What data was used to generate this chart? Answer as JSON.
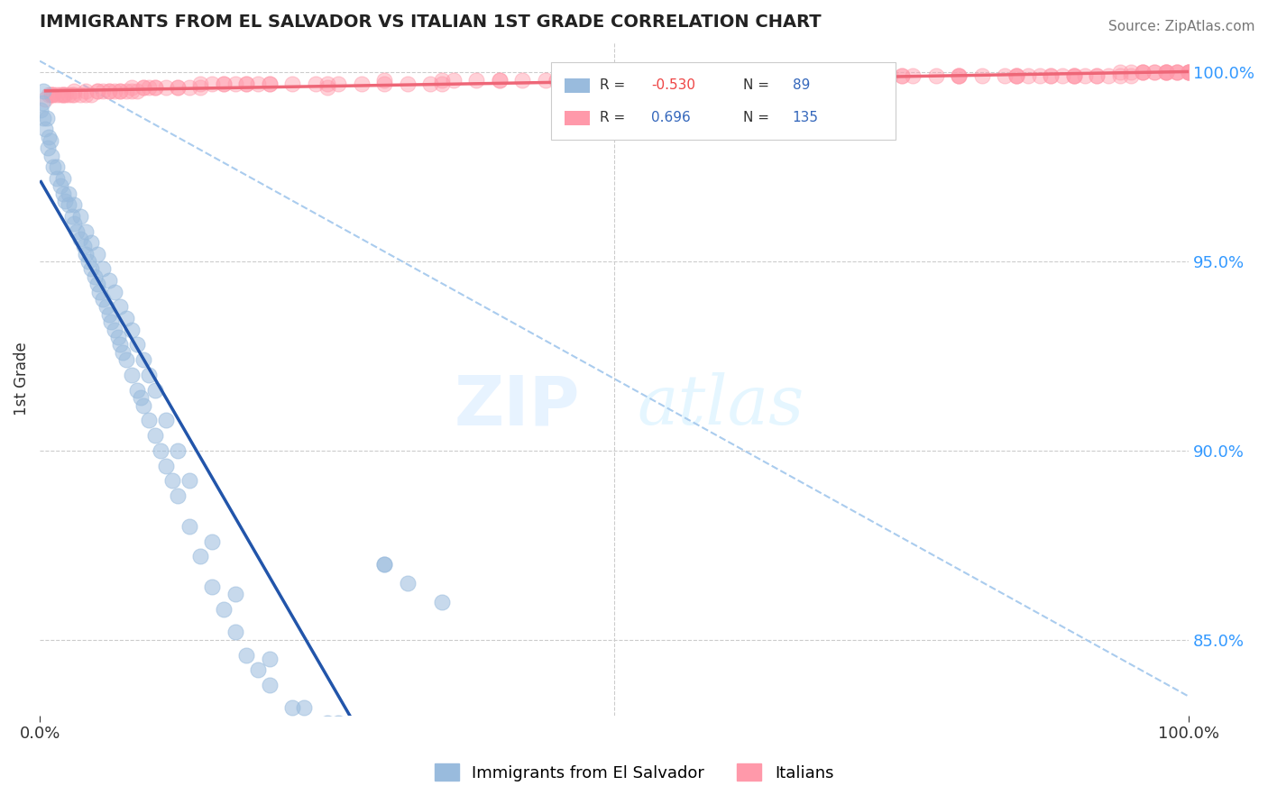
{
  "title": "IMMIGRANTS FROM EL SALVADOR VS ITALIAN 1ST GRADE CORRELATION CHART",
  "source_text": "Source: ZipAtlas.com",
  "ylabel": "1st Grade",
  "xmin": 0.0,
  "xmax": 1.0,
  "ymin": 0.83,
  "ymax": 1.008,
  "yticks": [
    0.85,
    0.9,
    0.95,
    1.0
  ],
  "ytick_labels": [
    "85.0%",
    "90.0%",
    "95.0%",
    "100.0%"
  ],
  "xticks": [
    0.0,
    1.0
  ],
  "xtick_labels": [
    "0.0%",
    "100.0%"
  ],
  "color_blue": "#99BBDD",
  "color_pink": "#FF99AA",
  "color_trend_blue": "#2255AA",
  "color_trend_pink": "#EE6677",
  "color_diag": "#AACCEE",
  "watermark_zip": "ZIP",
  "watermark_atlas": "atlas",
  "background_color": "#FFFFFF",
  "blue_x": [
    0.001,
    0.002,
    0.003,
    0.005,
    0.007,
    0.008,
    0.01,
    0.012,
    0.015,
    0.018,
    0.02,
    0.022,
    0.025,
    0.028,
    0.03,
    0.032,
    0.035,
    0.038,
    0.04,
    0.042,
    0.045,
    0.048,
    0.05,
    0.052,
    0.055,
    0.058,
    0.06,
    0.062,
    0.065,
    0.068,
    0.07,
    0.072,
    0.075,
    0.08,
    0.085,
    0.088,
    0.09,
    0.095,
    0.1,
    0.105,
    0.11,
    0.115,
    0.12,
    0.13,
    0.14,
    0.15,
    0.16,
    0.17,
    0.18,
    0.19,
    0.2,
    0.22,
    0.25,
    0.28,
    0.3,
    0.32,
    0.35,
    0.015,
    0.02,
    0.025,
    0.03,
    0.035,
    0.04,
    0.045,
    0.05,
    0.055,
    0.06,
    0.065,
    0.07,
    0.075,
    0.08,
    0.085,
    0.09,
    0.095,
    0.1,
    0.11,
    0.12,
    0.13,
    0.15,
    0.17,
    0.2,
    0.23,
    0.26,
    0.3,
    0.003,
    0.006,
    0.009
  ],
  "blue_y": [
    0.99,
    0.992,
    0.988,
    0.985,
    0.98,
    0.983,
    0.978,
    0.975,
    0.972,
    0.97,
    0.968,
    0.966,
    0.965,
    0.962,
    0.96,
    0.958,
    0.956,
    0.954,
    0.952,
    0.95,
    0.948,
    0.946,
    0.944,
    0.942,
    0.94,
    0.938,
    0.936,
    0.934,
    0.932,
    0.93,
    0.928,
    0.926,
    0.924,
    0.92,
    0.916,
    0.914,
    0.912,
    0.908,
    0.904,
    0.9,
    0.896,
    0.892,
    0.888,
    0.88,
    0.872,
    0.864,
    0.858,
    0.852,
    0.846,
    0.842,
    0.838,
    0.832,
    0.828,
    0.826,
    0.87,
    0.865,
    0.86,
    0.975,
    0.972,
    0.968,
    0.965,
    0.962,
    0.958,
    0.955,
    0.952,
    0.948,
    0.945,
    0.942,
    0.938,
    0.935,
    0.932,
    0.928,
    0.924,
    0.92,
    0.916,
    0.908,
    0.9,
    0.892,
    0.876,
    0.862,
    0.845,
    0.832,
    0.828,
    0.87,
    0.995,
    0.988,
    0.982
  ],
  "pink_x": [
    0.005,
    0.008,
    0.01,
    0.012,
    0.015,
    0.018,
    0.02,
    0.022,
    0.025,
    0.028,
    0.03,
    0.035,
    0.04,
    0.045,
    0.05,
    0.055,
    0.06,
    0.065,
    0.07,
    0.075,
    0.08,
    0.085,
    0.09,
    0.095,
    0.1,
    0.11,
    0.12,
    0.13,
    0.14,
    0.15,
    0.16,
    0.17,
    0.18,
    0.19,
    0.2,
    0.22,
    0.24,
    0.26,
    0.28,
    0.3,
    0.32,
    0.34,
    0.36,
    0.38,
    0.4,
    0.42,
    0.44,
    0.46,
    0.48,
    0.5,
    0.52,
    0.54,
    0.56,
    0.58,
    0.6,
    0.62,
    0.64,
    0.66,
    0.68,
    0.7,
    0.72,
    0.74,
    0.76,
    0.78,
    0.8,
    0.82,
    0.84,
    0.86,
    0.88,
    0.9,
    0.92,
    0.94,
    0.96,
    0.98,
    1.0,
    0.01,
    0.02,
    0.03,
    0.04,
    0.05,
    0.06,
    0.07,
    0.08,
    0.09,
    0.1,
    0.12,
    0.14,
    0.16,
    0.18,
    0.2,
    0.25,
    0.3,
    0.35,
    0.4,
    0.45,
    0.5,
    0.55,
    0.6,
    0.65,
    0.7,
    0.75,
    0.8,
    0.85,
    0.9,
    0.95,
    1.0,
    0.25,
    0.6,
    0.75,
    0.85,
    0.9,
    0.92,
    0.94,
    0.96,
    0.97,
    0.98,
    0.99,
    1.0,
    0.35,
    0.45,
    0.5,
    0.55,
    0.65,
    0.7,
    0.8,
    0.88,
    0.96,
    0.98,
    0.99,
    1.0,
    0.97,
    0.98,
    0.99,
    1.0,
    0.95,
    0.93,
    0.91,
    0.89,
    0.87,
    0.85
  ],
  "pink_y": [
    0.993,
    0.994,
    0.994,
    0.994,
    0.994,
    0.994,
    0.994,
    0.994,
    0.994,
    0.994,
    0.994,
    0.994,
    0.994,
    0.994,
    0.995,
    0.995,
    0.995,
    0.995,
    0.995,
    0.995,
    0.995,
    0.995,
    0.996,
    0.996,
    0.996,
    0.996,
    0.996,
    0.996,
    0.996,
    0.997,
    0.997,
    0.997,
    0.997,
    0.997,
    0.997,
    0.997,
    0.997,
    0.997,
    0.997,
    0.997,
    0.997,
    0.997,
    0.998,
    0.998,
    0.998,
    0.998,
    0.998,
    0.998,
    0.998,
    0.998,
    0.998,
    0.998,
    0.998,
    0.998,
    0.999,
    0.999,
    0.999,
    0.999,
    0.999,
    0.999,
    0.999,
    0.999,
    0.999,
    0.999,
    0.999,
    0.999,
    0.999,
    0.999,
    0.999,
    0.999,
    0.999,
    0.999,
    1.0,
    1.0,
    1.0,
    0.994,
    0.994,
    0.995,
    0.995,
    0.995,
    0.995,
    0.995,
    0.996,
    0.996,
    0.996,
    0.996,
    0.997,
    0.997,
    0.997,
    0.997,
    0.997,
    0.998,
    0.998,
    0.998,
    0.998,
    0.998,
    0.998,
    0.999,
    0.999,
    0.999,
    0.999,
    0.999,
    0.999,
    0.999,
    1.0,
    1.0,
    0.996,
    0.998,
    0.999,
    0.999,
    0.999,
    0.999,
    1.0,
    1.0,
    1.0,
    1.0,
    1.0,
    1.0,
    0.997,
    0.998,
    0.998,
    0.998,
    0.999,
    0.999,
    0.999,
    0.999,
    1.0,
    1.0,
    1.0,
    1.0,
    1.0,
    1.0,
    1.0,
    1.0,
    0.999,
    0.999,
    0.999,
    0.999,
    0.999,
    0.999
  ]
}
